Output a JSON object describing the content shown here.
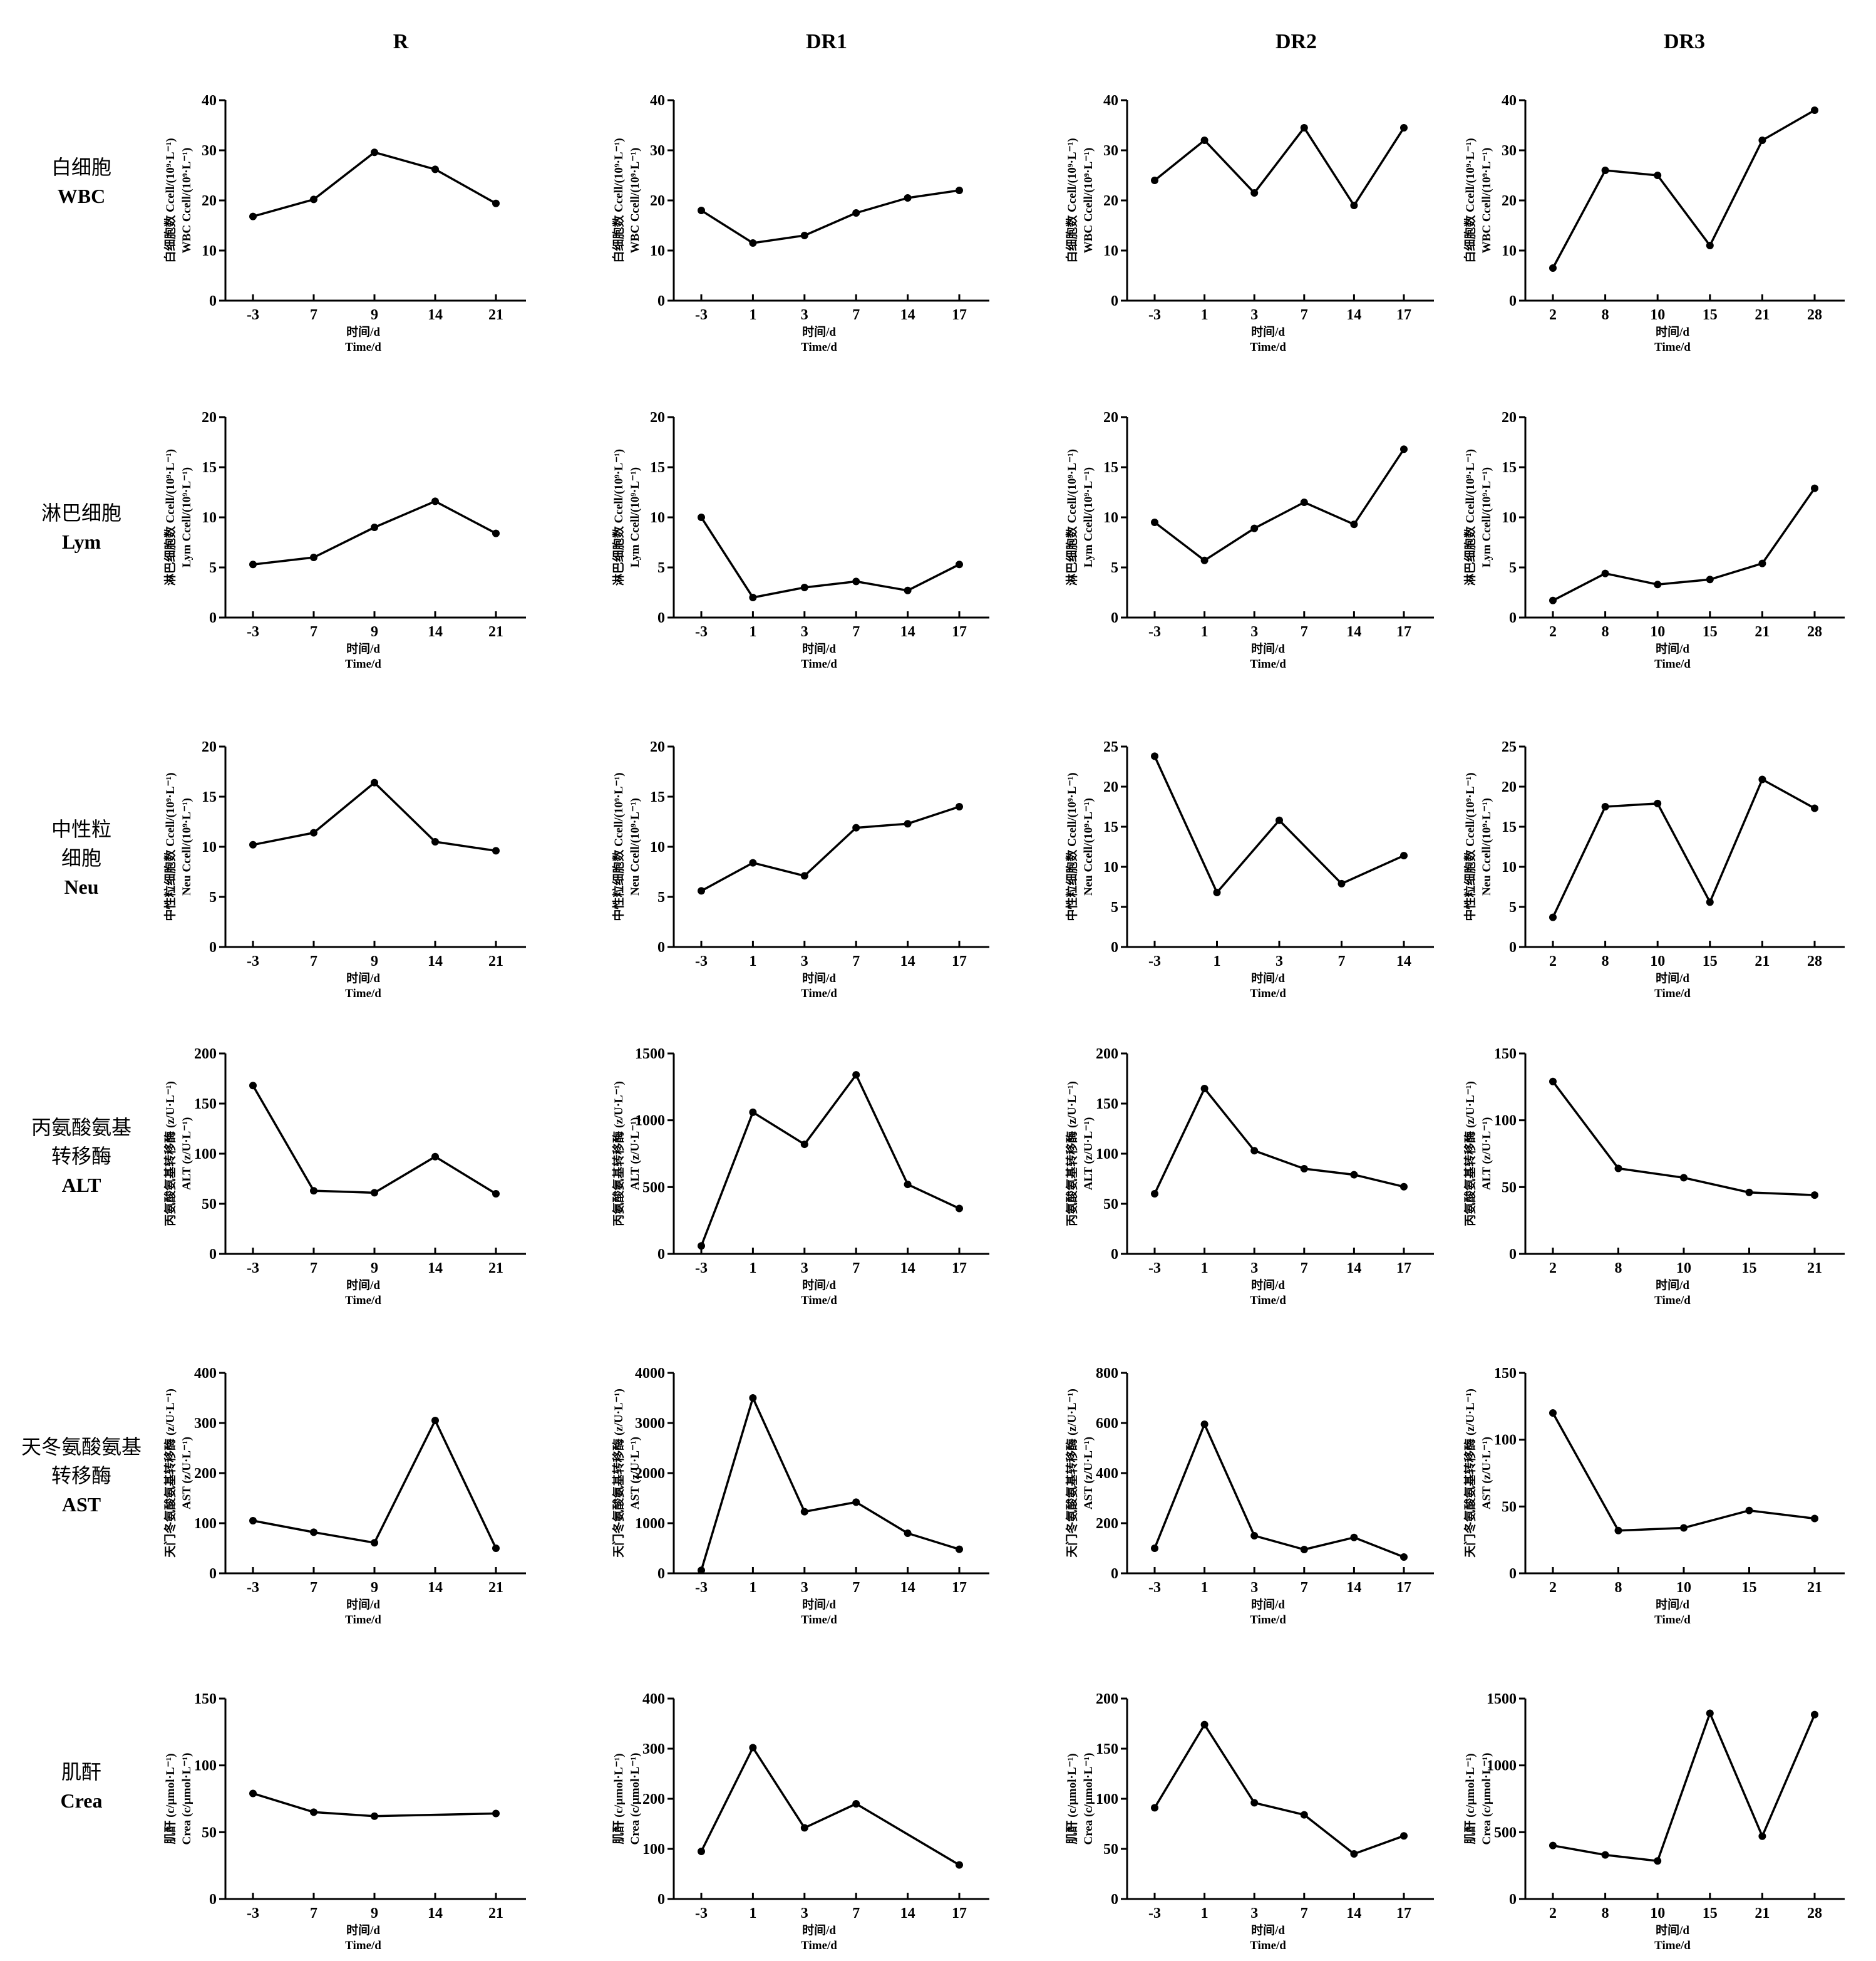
{
  "columns": [
    "R",
    "DR1",
    "DR2",
    "DR3"
  ],
  "rows": [
    {
      "cn": [
        "白细胞"
      ],
      "en": "WBC",
      "ylabel": [
        "白细胞数  Ccell/(10⁹·L⁻¹)",
        "WBC  Ccell/(10⁹·L⁻¹)"
      ]
    },
    {
      "cn": [
        "淋巴细胞"
      ],
      "en": "Lym",
      "ylabel": [
        "淋巴细胞数  Ccell/(10⁹·L⁻¹)",
        "Lym  Ccell/(10⁹·L⁻¹)"
      ]
    },
    {
      "cn": [
        "中性粒",
        "细胞"
      ],
      "en": "Neu",
      "ylabel": [
        "中性粒细胞数  Ccell/(10⁹·L⁻¹)",
        "Neu  Ccell/(10⁹·L⁻¹)"
      ]
    },
    {
      "cn": [
        "丙氨酸氨基",
        "转移酶"
      ],
      "en": "ALT",
      "ylabel": [
        "丙氨酸氨基转移酶 (z/U·L⁻¹)",
        "ALT (z/U·L⁻¹)"
      ]
    },
    {
      "cn": [
        "天冬氨酸氨基",
        "转移酶"
      ],
      "en": "AST",
      "ylabel": [
        "天门冬氨酸氨基转移酶 (z/U·L⁻¹)",
        "AST (z/U·L⁻¹)"
      ]
    },
    {
      "cn": [
        "肌酐"
      ],
      "en": "Crea",
      "ylabel": [
        "肌酐 (c/μmol·L⁻¹)",
        "Crea (c/μmol·L⁻¹)"
      ]
    }
  ],
  "xlabel": [
    "时间/d",
    "Time/d"
  ],
  "chart_data": [
    {
      "type": "line",
      "row": 0,
      "col": 0,
      "x": [
        "-3",
        "7",
        "9",
        "14",
        "21"
      ],
      "values": [
        16.8,
        20.2,
        29.6,
        26.2,
        19.4
      ],
      "ylim": [
        0,
        40
      ],
      "yticks": [
        0,
        10,
        20,
        30,
        40
      ]
    },
    {
      "type": "line",
      "row": 0,
      "col": 1,
      "x": [
        "-3",
        "1",
        "3",
        "7",
        "14",
        "17"
      ],
      "values": [
        18,
        11.5,
        13,
        17.5,
        20.5,
        22
      ],
      "ylim": [
        0,
        40
      ],
      "yticks": [
        0,
        10,
        20,
        30,
        40
      ]
    },
    {
      "type": "line",
      "row": 0,
      "col": 2,
      "x": [
        "-3",
        "1",
        "3",
        "7",
        "14",
        "17"
      ],
      "values": [
        24,
        32,
        21.5,
        34.5,
        19,
        34.5
      ],
      "ylim": [
        0,
        40
      ],
      "yticks": [
        0,
        10,
        20,
        30,
        40
      ]
    },
    {
      "type": "line",
      "row": 0,
      "col": 3,
      "x": [
        "2",
        "8",
        "10",
        "15",
        "21",
        "28"
      ],
      "values": [
        6.5,
        26,
        25,
        11,
        32,
        38
      ],
      "ylim": [
        0,
        40
      ],
      "yticks": [
        0,
        10,
        20,
        30,
        40
      ]
    },
    {
      "type": "line",
      "row": 1,
      "col": 0,
      "x": [
        "-3",
        "7",
        "9",
        "14",
        "21"
      ],
      "values": [
        5.3,
        6,
        9,
        11.6,
        8.4
      ],
      "ylim": [
        0,
        20
      ],
      "yticks": [
        0,
        5,
        10,
        15,
        20
      ]
    },
    {
      "type": "line",
      "row": 1,
      "col": 1,
      "x": [
        "-3",
        "1",
        "3",
        "7",
        "14",
        "17"
      ],
      "values": [
        10,
        2,
        3,
        3.6,
        2.7,
        5.3
      ],
      "ylim": [
        0,
        20
      ],
      "yticks": [
        0,
        5,
        10,
        15,
        20
      ]
    },
    {
      "type": "line",
      "row": 1,
      "col": 2,
      "x": [
        "-3",
        "1",
        "3",
        "7",
        "14",
        "17"
      ],
      "values": [
        9.5,
        5.7,
        8.9,
        11.5,
        9.3,
        16.8
      ],
      "ylim": [
        0,
        20
      ],
      "yticks": [
        0,
        5,
        10,
        15,
        20
      ]
    },
    {
      "type": "line",
      "row": 1,
      "col": 3,
      "x": [
        "2",
        "8",
        "10",
        "15",
        "21",
        "28"
      ],
      "values": [
        1.7,
        4.4,
        3.3,
        3.8,
        5.4,
        12.9
      ],
      "ylim": [
        0,
        20
      ],
      "yticks": [
        0,
        5,
        10,
        15,
        20
      ]
    },
    {
      "type": "line",
      "row": 2,
      "col": 0,
      "x": [
        "-3",
        "7",
        "9",
        "14",
        "21"
      ],
      "values": [
        10.2,
        11.4,
        16.4,
        10.5,
        9.6
      ],
      "ylim": [
        0,
        20
      ],
      "yticks": [
        0,
        5,
        10,
        15,
        20
      ]
    },
    {
      "type": "line",
      "row": 2,
      "col": 1,
      "x": [
        "-3",
        "1",
        "3",
        "7",
        "14",
        "17"
      ],
      "values": [
        5.6,
        8.4,
        7.1,
        11.9,
        12.3,
        14
      ],
      "ylim": [
        0,
        20
      ],
      "yticks": [
        0,
        5,
        10,
        15,
        20
      ]
    },
    {
      "type": "line",
      "row": 2,
      "col": 2,
      "x": [
        "-3",
        "1",
        "3",
        "7",
        "14"
      ],
      "values": [
        23.8,
        6.8,
        15.8,
        7.9,
        11.4
      ],
      "ylim": [
        0,
        25
      ],
      "yticks": [
        0,
        5,
        10,
        15,
        20,
        25
      ]
    },
    {
      "type": "line",
      "row": 2,
      "col": 3,
      "x": [
        "2",
        "8",
        "10",
        "15",
        "21",
        "28"
      ],
      "values": [
        3.7,
        17.5,
        17.9,
        5.6,
        20.9,
        17.3
      ],
      "ylim": [
        0,
        25
      ],
      "yticks": [
        0,
        5,
        10,
        15,
        20,
        25
      ]
    },
    {
      "type": "line",
      "row": 3,
      "col": 0,
      "x": [
        "-3",
        "7",
        "9",
        "14",
        "21"
      ],
      "values": [
        168,
        63,
        61,
        97,
        60
      ],
      "ylim": [
        0,
        200
      ],
      "yticks": [
        0,
        50,
        100,
        150,
        200
      ]
    },
    {
      "type": "line",
      "row": 3,
      "col": 1,
      "x": [
        "-3",
        "1",
        "3",
        "7",
        "14",
        "17"
      ],
      "values": [
        60,
        1060,
        820,
        1340,
        520,
        340
      ],
      "ylim": [
        0,
        1500
      ],
      "yticks": [
        0,
        500,
        1000,
        1500
      ]
    },
    {
      "type": "line",
      "row": 3,
      "col": 2,
      "x": [
        "-3",
        "1",
        "3",
        "7",
        "14",
        "17"
      ],
      "values": [
        60,
        165,
        103,
        85,
        79,
        67
      ],
      "ylim": [
        0,
        200
      ],
      "yticks": [
        0,
        50,
        100,
        150,
        200
      ]
    },
    {
      "type": "line",
      "row": 3,
      "col": 3,
      "x": [
        "2",
        "8",
        "10",
        "15",
        "21"
      ],
      "values": [
        129,
        64,
        57,
        46,
        44
      ],
      "ylim": [
        0,
        150
      ],
      "yticks": [
        0,
        50,
        100,
        150
      ]
    },
    {
      "type": "line",
      "row": 4,
      "col": 0,
      "x": [
        "-3",
        "7",
        "9",
        "14",
        "21"
      ],
      "values": [
        105,
        82,
        61,
        305,
        50
      ],
      "ylim": [
        0,
        400
      ],
      "yticks": [
        0,
        100,
        200,
        300,
        400
      ]
    },
    {
      "type": "line",
      "row": 4,
      "col": 1,
      "x": [
        "-3",
        "1",
        "3",
        "7",
        "14",
        "17"
      ],
      "values": [
        60,
        3500,
        1230,
        1420,
        800,
        480
      ],
      "ylim": [
        0,
        4000
      ],
      "yticks": [
        0,
        1000,
        2000,
        3000,
        4000
      ]
    },
    {
      "type": "line",
      "row": 4,
      "col": 2,
      "x": [
        "-3",
        "1",
        "3",
        "7",
        "14",
        "17"
      ],
      "values": [
        100,
        595,
        150,
        95,
        143,
        65
      ],
      "ylim": [
        0,
        800
      ],
      "yticks": [
        0,
        200,
        400,
        600,
        800
      ]
    },
    {
      "type": "line",
      "row": 4,
      "col": 3,
      "x": [
        "2",
        "8",
        "10",
        "15",
        "21"
      ],
      "values": [
        120,
        32,
        34,
        47,
        41
      ],
      "ylim": [
        0,
        150
      ],
      "yticks": [
        0,
        50,
        100,
        150
      ]
    },
    {
      "type": "line",
      "row": 5,
      "col": 0,
      "x": [
        "-3",
        "7",
        "9",
        "14",
        "21"
      ],
      "values": [
        79,
        65,
        62,
        null,
        64
      ],
      "ylim": [
        0,
        150
      ],
      "yticks": [
        0,
        50,
        100,
        150
      ]
    },
    {
      "type": "line",
      "row": 5,
      "col": 1,
      "x": [
        "-3",
        "1",
        "3",
        "7",
        "14",
        "17"
      ],
      "values": [
        95,
        302,
        142,
        190,
        null,
        68
      ],
      "ylim": [
        0,
        400
      ],
      "yticks": [
        0,
        100,
        200,
        300,
        400
      ]
    },
    {
      "type": "line",
      "row": 5,
      "col": 2,
      "x": [
        "-3",
        "1",
        "3",
        "7",
        "14",
        "17"
      ],
      "values": [
        91,
        174,
        96,
        84,
        45,
        63
      ],
      "ylim": [
        0,
        200
      ],
      "yticks": [
        0,
        50,
        100,
        150,
        200
      ]
    },
    {
      "type": "line",
      "row": 5,
      "col": 3,
      "x": [
        "2",
        "8",
        "10",
        "15",
        "21",
        "28"
      ],
      "values": [
        400,
        330,
        285,
        1390,
        470,
        1380
      ],
      "ylim": [
        0,
        1500
      ],
      "yticks": [
        0,
        500,
        1000,
        1500
      ]
    }
  ]
}
